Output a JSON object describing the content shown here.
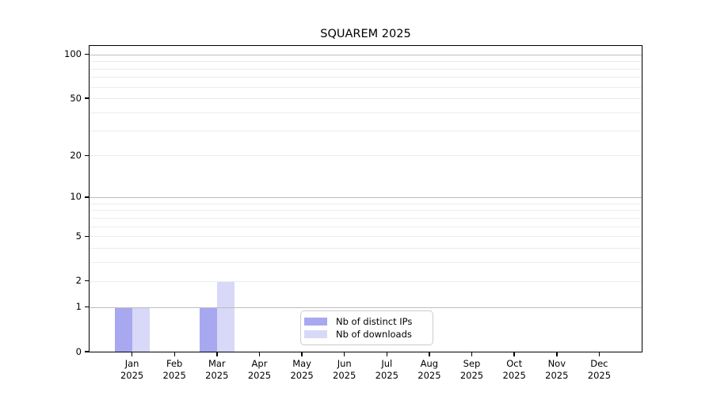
{
  "title": "SQUAREM 2025",
  "chart_data": {
    "type": "bar",
    "title": "SQUAREM 2025",
    "categories": [
      "Jan",
      "Feb",
      "Mar",
      "Apr",
      "May",
      "Jun",
      "Jul",
      "Aug",
      "Sep",
      "Oct",
      "Nov",
      "Dec"
    ],
    "x_sub_label": "2025",
    "series": [
      {
        "name": "Nb of distinct IPs",
        "color": "#a8a8f0",
        "values": [
          1,
          0,
          1,
          0,
          0,
          0,
          0,
          0,
          0,
          0,
          0,
          0
        ]
      },
      {
        "name": "Nb of downloads",
        "color": "#d8d8f8",
        "values": [
          1,
          0,
          2,
          0,
          0,
          0,
          0,
          0,
          0,
          0,
          0,
          0
        ]
      }
    ],
    "xlabel": "",
    "ylabel": "",
    "y_scale": "log1p",
    "ylim": [
      0,
      113
    ],
    "y_tick_values": [
      0,
      1,
      2,
      5,
      10,
      20,
      50,
      100
    ],
    "y_major_gridlines": [
      1,
      10,
      100
    ],
    "y_minor_gridlines": [
      2,
      3,
      4,
      5,
      6,
      7,
      8,
      9,
      20,
      30,
      40,
      50,
      60,
      70,
      80,
      90
    ],
    "grid": "horizontal",
    "legend_position": "bottom-center"
  }
}
